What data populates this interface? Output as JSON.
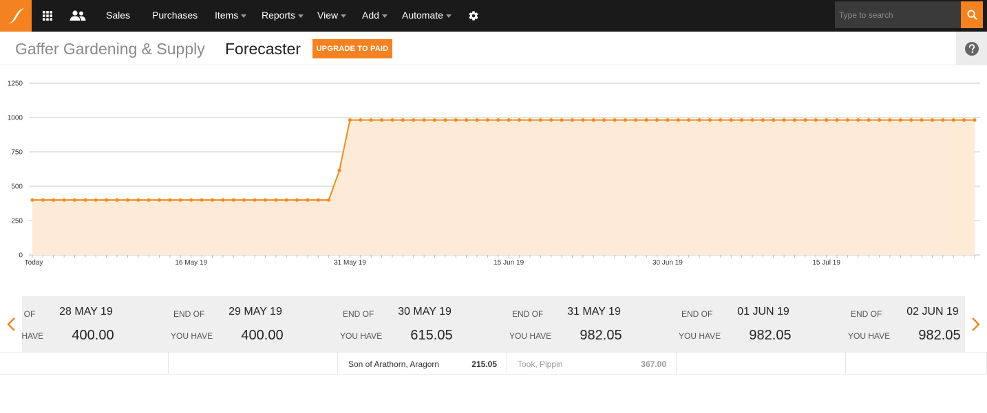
{
  "nav": {
    "sales": "Sales",
    "purchases": "Purchases",
    "items": "Items",
    "reports": "Reports",
    "view": "View",
    "add": "Add",
    "automate": "Automate",
    "search_placeholder": "Type to search"
  },
  "header": {
    "company": "Gaffer Gardening & Supply",
    "title": "Forecaster",
    "upgrade": "UPGRADE TO PAID"
  },
  "chart_data": {
    "type": "area",
    "x_tick_labels": [
      "Today",
      "16 May 19",
      "31 May 19",
      "15 Jun 19",
      "30 Jun 19",
      "15 Jul 19"
    ],
    "y_ticks": [
      0,
      250,
      500,
      750,
      1000,
      1250
    ],
    "ylim": [
      0,
      1250
    ],
    "grid": true,
    "series": [
      {
        "values": [
          400,
          400,
          400,
          400,
          400,
          400,
          400,
          400,
          400,
          400,
          400,
          400,
          400,
          400,
          400,
          400,
          400,
          400,
          400,
          400,
          400,
          400,
          400,
          400,
          400,
          400,
          400,
          400,
          400,
          615.05,
          982.05,
          982.05,
          982.05,
          982.05,
          982.05,
          982.05,
          982.05,
          982.05,
          982.05,
          982.05,
          982.05,
          982.05,
          982.05,
          982.05,
          982.05,
          982.05,
          982.05,
          982.05,
          982.05,
          982.05,
          982.05,
          982.05,
          982.05,
          982.05,
          982.05,
          982.05,
          982.05,
          982.05,
          982.05,
          982.05,
          982.05,
          982.05,
          982.05,
          982.05,
          982.05,
          982.05,
          982.05,
          982.05,
          982.05,
          982.05,
          982.05,
          982.05,
          982.05,
          982.05,
          982.05,
          982.05,
          982.05,
          982.05,
          982.05,
          982.05,
          982.05,
          982.05,
          982.05,
          982.05,
          982.05,
          982.05,
          982.05,
          982.05,
          982.05,
          982.05
        ]
      }
    ],
    "line_color": "#f28c1e",
    "fill_color": "#fdebd8"
  },
  "days": [
    {
      "endof": "END OF",
      "date": "28 MAY 19",
      "youhave": "YOU HAVE",
      "amount": "400.00"
    },
    {
      "endof": "END OF",
      "date": "29 MAY 19",
      "youhave": "YOU HAVE",
      "amount": "400.00"
    },
    {
      "endof": "END OF",
      "date": "30 MAY 19",
      "youhave": "YOU HAVE",
      "amount": "615.05"
    },
    {
      "endof": "END OF",
      "date": "31 MAY 19",
      "youhave": "YOU HAVE",
      "amount": "982.05"
    },
    {
      "endof": "END OF",
      "date": "01 JUN 19",
      "youhave": "YOU HAVE",
      "amount": "982.05"
    },
    {
      "endof": "END OF",
      "date": "02 JUN 19",
      "youhave": "YOU HAVE",
      "amount": "982.05"
    }
  ],
  "details": [
    {
      "name": "",
      "value": ""
    },
    {
      "name": "",
      "value": ""
    },
    {
      "name": "Son of Arathorn, Aragorn",
      "value": "215.05"
    },
    {
      "name": "Took, Pippin",
      "value": "367.00"
    },
    {
      "name": "",
      "value": ""
    },
    {
      "name": "",
      "value": ""
    }
  ],
  "icons": {
    "logo": "brand-logo-icon",
    "apps": "apps-grid-icon",
    "people": "people-icon",
    "settings": "gear-icon",
    "search": "search-icon",
    "help": "help-icon",
    "prev": "chevron-left-icon",
    "next": "chevron-right-icon"
  },
  "colors": {
    "accent": "#f58220",
    "topbar": "#1a1a1a"
  }
}
